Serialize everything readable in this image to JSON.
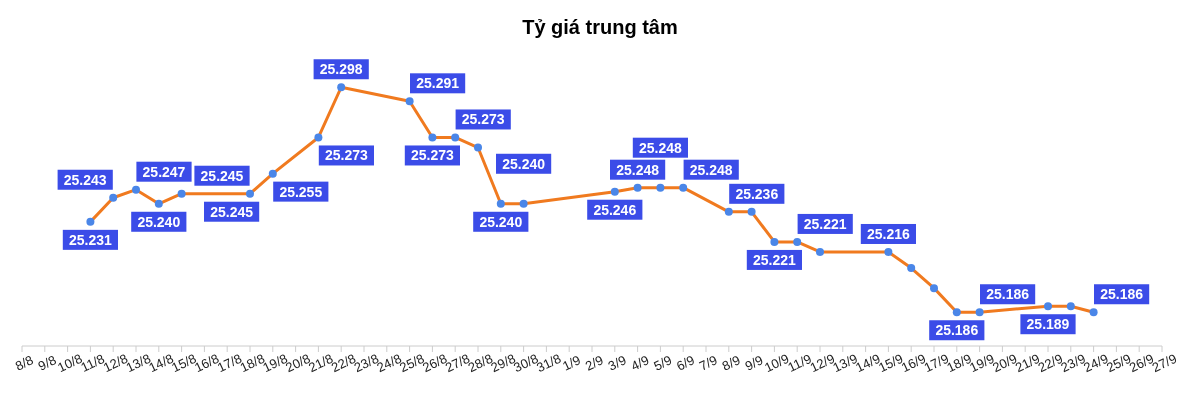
{
  "chart_data": {
    "type": "line",
    "title": "Tỷ giá trung tâm",
    "marker": "circle",
    "x": [
      "--08-11",
      "--08-12",
      "--08-13",
      "--08-14",
      "--08-15",
      "--08-18",
      "--08-19",
      "--08-21",
      "--08-22",
      "--08-25",
      "--08-26",
      "--08-27",
      "--08-28",
      "--08-29",
      "--08-30",
      "--09-03",
      "--09-04",
      "--09-05",
      "--09-06",
      "--09-08",
      "--09-09",
      "--09-10",
      "--09-11",
      "--09-12",
      "--09-15",
      "--09-16",
      "--09-17",
      "--09-18",
      "--09-19",
      "--09-22",
      "--09-23",
      "--09-24"
    ],
    "series": [
      {
        "color": "#f07a1f",
        "values": [
          25231,
          25243,
          25247,
          25240,
          25245,
          25245,
          25255,
          25273,
          25298,
          25291,
          25273,
          25273,
          25268,
          25240,
          25240,
          25246,
          25248,
          25248,
          25248,
          25236,
          25236,
          25221,
          25221,
          25216,
          25216,
          25208,
          25198,
          25186,
          25186,
          25189,
          25189,
          25186
        ],
        "value_labels": [
          "25.231",
          "25.243",
          "25.247",
          "25.240",
          "25.245",
          "25.245",
          "25.255",
          "25.273",
          "25.298",
          "25.291",
          "25.273",
          "25.273",
          null,
          "25.240",
          "25.240",
          "25.246",
          "25.248",
          "25.248",
          "25.248",
          "25.236",
          null,
          "25.221",
          "25.221",
          null,
          "25.216",
          null,
          null,
          "25.186",
          "25.186",
          "25.189",
          null,
          "25.186"
        ]
      }
    ],
    "xlim": [
      "--08-08",
      "--09-27"
    ],
    "xticks": [
      {
        "value": "--08-08",
        "label": "8/8"
      },
      {
        "value": "--08-09",
        "label": "9/8"
      },
      {
        "value": "--08-10",
        "label": "10/8"
      },
      {
        "value": "--08-11",
        "label": "11/8"
      },
      {
        "value": "--08-12",
        "label": "12/8"
      },
      {
        "value": "--08-13",
        "label": "13/8"
      },
      {
        "value": "--08-14",
        "label": "14/8"
      },
      {
        "value": "--08-15",
        "label": "15/8"
      },
      {
        "value": "--08-16",
        "label": "16/8"
      },
      {
        "value": "--08-17",
        "label": "17/8"
      },
      {
        "value": "--08-18",
        "label": "18/8"
      },
      {
        "value": "--08-19",
        "label": "19/8"
      },
      {
        "value": "--08-20",
        "label": "20/8"
      },
      {
        "value": "--08-21",
        "label": "21/8"
      },
      {
        "value": "--08-22",
        "label": "22/8"
      },
      {
        "value": "--08-23",
        "label": "23/8"
      },
      {
        "value": "--08-24",
        "label": "24/8"
      },
      {
        "value": "--08-25",
        "label": "25/8"
      },
      {
        "value": "--08-26",
        "label": "26/8"
      },
      {
        "value": "--08-27",
        "label": "27/8"
      },
      {
        "value": "--08-28",
        "label": "28/8"
      },
      {
        "value": "--08-29",
        "label": "29/8"
      },
      {
        "value": "--08-30",
        "label": "30/8"
      },
      {
        "value": "--08-31",
        "label": "31/8"
      },
      {
        "value": "--09-01",
        "label": "1/9"
      },
      {
        "value": "--09-02",
        "label": "2/9"
      },
      {
        "value": "--09-03",
        "label": "3/9"
      },
      {
        "value": "--09-04",
        "label": "4/9"
      },
      {
        "value": "--09-05",
        "label": "5/9"
      },
      {
        "value": "--09-06",
        "label": "6/9"
      },
      {
        "value": "--09-07",
        "label": "7/9"
      },
      {
        "value": "--09-08",
        "label": "8/9"
      },
      {
        "value": "--09-09",
        "label": "9/9"
      },
      {
        "value": "--09-10",
        "label": "10/9"
      },
      {
        "value": "--09-11",
        "label": "11/9"
      },
      {
        "value": "--09-12",
        "label": "12/9"
      },
      {
        "value": "--09-13",
        "label": "13/9"
      },
      {
        "value": "--09-14",
        "label": "14/9"
      },
      {
        "value": "--09-15",
        "label": "15/9"
      },
      {
        "value": "--09-16",
        "label": "16/9"
      },
      {
        "value": "--09-17",
        "label": "17/9"
      },
      {
        "value": "--09-18",
        "label": "18/9"
      },
      {
        "value": "--09-19",
        "label": "19/9"
      },
      {
        "value": "--09-20",
        "label": "20/9"
      },
      {
        "value": "--09-21",
        "label": "21/9"
      },
      {
        "value": "--09-22",
        "label": "22/9"
      },
      {
        "value": "--09-23",
        "label": "23/9"
      },
      {
        "value": "--09-24",
        "label": "24/9"
      },
      {
        "value": "--09-25",
        "label": "25/9"
      },
      {
        "value": "--09-26",
        "label": "26/9"
      },
      {
        "value": "--09-27",
        "label": "27/9"
      }
    ]
  }
}
